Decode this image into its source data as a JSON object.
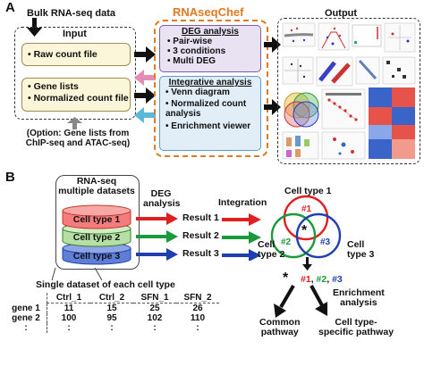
{
  "panel_a": {
    "letter": "A",
    "bulk_label": "Bulk RNA-seq data",
    "input_title": "Input",
    "raw_count": "Raw count file",
    "gene_lists": "Gene lists",
    "normalized_count": "Normalized count file",
    "option_line1": "(Option: Gene lists from",
    "option_line2": "ChIP-seq and ATAC-seq)",
    "chef_title": "RNAseqChef",
    "deg_title": "DEG analysis",
    "deg_items": [
      "Pair-wise",
      "3 conditions",
      "Multi DEG"
    ],
    "int_title": "Integrative analysis",
    "int_items": [
      "Venn diagram",
      "Normalized count analysis",
      "Enrichment viewer"
    ],
    "output_title": "Output",
    "colors": {
      "chef_orange": "#e07a1f",
      "deg_purple": "#7b5ea7",
      "int_blue": "#5b9bd5",
      "pink": "#e58db6",
      "cyan": "#5bb8d9",
      "yellow_box": "#fbf6d9"
    }
  },
  "panel_b": {
    "letter": "B",
    "multi_title_1": "RNA-seq",
    "multi_title_2": "multiple datasets",
    "cell_types": [
      "Cell type 1",
      "Cell type 2",
      "Cell type 3"
    ],
    "deg_label_1": "DEG",
    "deg_label_2": "analysis",
    "results": [
      "Result 1",
      "Result 2",
      "Result 3"
    ],
    "integration": "Integration",
    "venn_labels": {
      "ct1": "Cell type 1",
      "ct2_a": "Cell",
      "ct2_b": "type 2",
      "ct3_a": "Cell",
      "ct3_b": "type 3",
      "r1": "#1",
      "r2": "#2",
      "r3": "#3",
      "star": "*"
    },
    "star_label": "*",
    "hash_list": [
      "#1",
      "#2",
      "#3"
    ],
    "hash_sep": ", ",
    "enrichment_1": "Enrichment",
    "enrichment_2": "analysis",
    "common_1": "Common",
    "common_2": "pathway",
    "specific_1": "Cell type-",
    "specific_2": "specific pathway",
    "single_title": "Single dataset of each cell type",
    "table": {
      "headers": [
        "",
        "Ctrl_1",
        "Ctrl_2",
        "SFN_1",
        "SFN_2"
      ],
      "rows": [
        [
          "gene 1",
          "11",
          "15",
          "25",
          "26"
        ],
        [
          "gene 2",
          "100",
          "95",
          "102",
          "110"
        ],
        [
          ":",
          ":",
          ":",
          ":",
          ":"
        ]
      ]
    },
    "colors": {
      "red": "#e02020",
      "green": "#1a9a3a",
      "blue": "#1f3fb0"
    }
  }
}
